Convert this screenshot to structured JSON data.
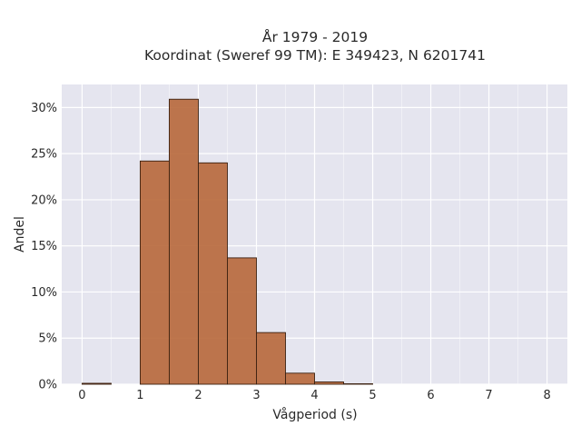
{
  "chart_data": {
    "type": "bar",
    "title_line1": "År 1979 - 2019",
    "title_line2": "Koordinat (Sweref 99 TM): E 349423, N 6201741",
    "xlabel": "Vågperiod (s)",
    "ylabel": "Andel",
    "xlim": [
      -0.35,
      8.35
    ],
    "ylim": [
      0,
      32.5
    ],
    "x_ticks": [
      0,
      1,
      2,
      3,
      4,
      5,
      6,
      7,
      8
    ],
    "y_ticks": [
      0,
      5,
      10,
      15,
      20,
      25,
      30
    ],
    "y_tick_labels": [
      "0%",
      "5%",
      "10%",
      "15%",
      "20%",
      "25%",
      "30%"
    ],
    "bin_edges": [
      0,
      0.5,
      1.0,
      1.5,
      2.0,
      2.5,
      3.0,
      3.5,
      4.0,
      4.5,
      5.0
    ],
    "values": [
      0.1,
      0.0,
      24.2,
      30.9,
      24.0,
      13.7,
      5.6,
      1.2,
      0.25,
      0.05
    ],
    "grid": true,
    "colors": {
      "bar_fill": "#b86a3e",
      "bar_stroke": "#3a2010",
      "plot_bg": "#e5e5ef",
      "grid": "#ffffff"
    }
  }
}
